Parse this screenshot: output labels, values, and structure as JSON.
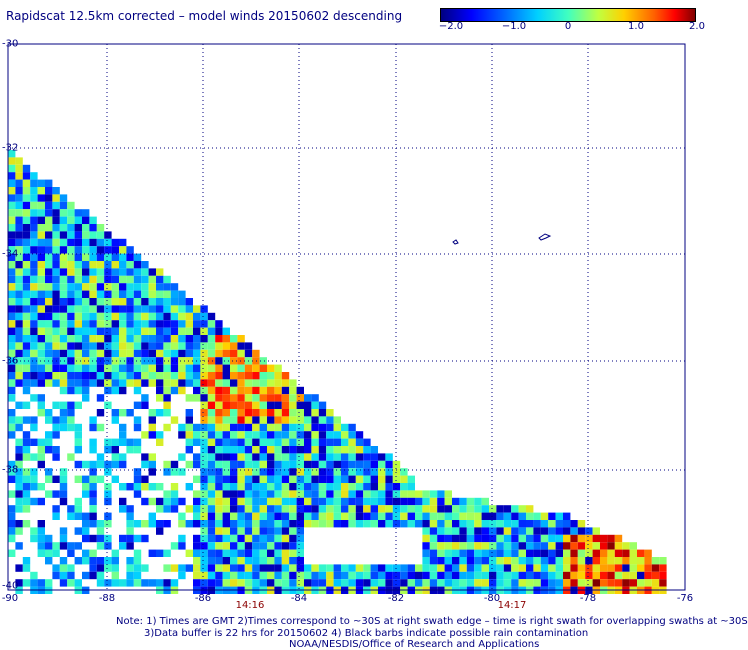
{
  "header": {
    "title": "Rapidscat 12.5km corrected – model winds 20150602 descending"
  },
  "colorbar": {
    "ticks": [
      "−2.0",
      "−1.0",
      "0",
      "1.0",
      "2.0"
    ],
    "range": [
      -2.0,
      2.0
    ],
    "colors": [
      "#000080",
      "#0000ff",
      "#0066ff",
      "#00d0ff",
      "#40ffc0",
      "#c0ff40",
      "#ffd000",
      "#ff6000",
      "#ff0000",
      "#800000"
    ]
  },
  "map": {
    "lat_labels": [
      "-30",
      "-32",
      "-34",
      "-36",
      "-38",
      "-40"
    ],
    "lon_labels": [
      "-90",
      "-88",
      "-86",
      "-84",
      "-82",
      "-80",
      "-78",
      "-76"
    ],
    "time_labels": [
      "14:16",
      "14:17"
    ],
    "grid_color": "#000080",
    "lat_range": [
      -40,
      -30
    ],
    "lon_range": [
      -90,
      -76
    ]
  },
  "notes": {
    "line1": "Note: 1) Times are GMT 2)Times correspond to ~30S at right swath edge – time is right swath for overlapping swaths at ~30S",
    "line2": "3)Data buffer is 22 hrs for 20150602 4) Black barbs indicate possible rain contamination",
    "line3": "NOAA/NESDIS/Office of Research and Applications"
  }
}
